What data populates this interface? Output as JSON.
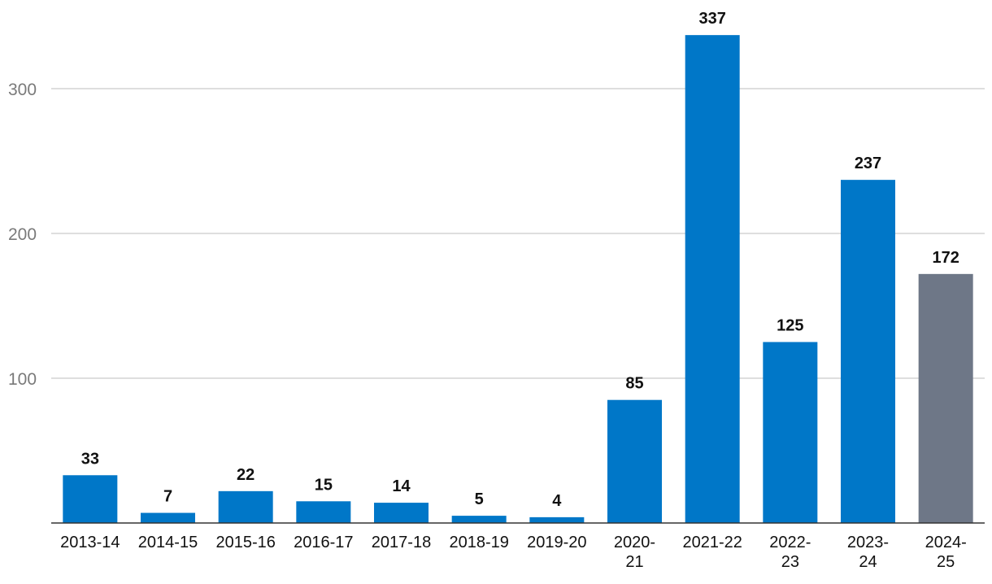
{
  "chart_data": {
    "type": "bar",
    "categories": [
      "2013-14",
      "2014-15",
      "2015-16",
      "2016-17",
      "2017-18",
      "2018-19",
      "2019-20",
      "2020-21",
      "2021-22",
      "2022-23",
      "2023-24",
      "2024-25"
    ],
    "category_lines": [
      [
        "2013-14"
      ],
      [
        "2014-15"
      ],
      [
        "2015-16"
      ],
      [
        "2016-17"
      ],
      [
        "2017-18"
      ],
      [
        "2018-19"
      ],
      [
        "2019-20"
      ],
      [
        "2020-",
        "21"
      ],
      [
        "2021-22"
      ],
      [
        "2022-",
        "23"
      ],
      [
        "2023-",
        "24"
      ],
      [
        "2024-",
        "25"
      ]
    ],
    "values": [
      33,
      7,
      22,
      15,
      14,
      5,
      4,
      85,
      337,
      125,
      237,
      172
    ],
    "colors": [
      "#0077c8",
      "#0077c8",
      "#0077c8",
      "#0077c8",
      "#0077c8",
      "#0077c8",
      "#0077c8",
      "#0077c8",
      "#0077c8",
      "#0077c8",
      "#0077c8",
      "#6e7787"
    ],
    "yticks": [
      100,
      200,
      300
    ],
    "ylim": [
      0,
      360
    ],
    "grid": true,
    "title": "",
    "xlabel": "",
    "ylabel": ""
  }
}
